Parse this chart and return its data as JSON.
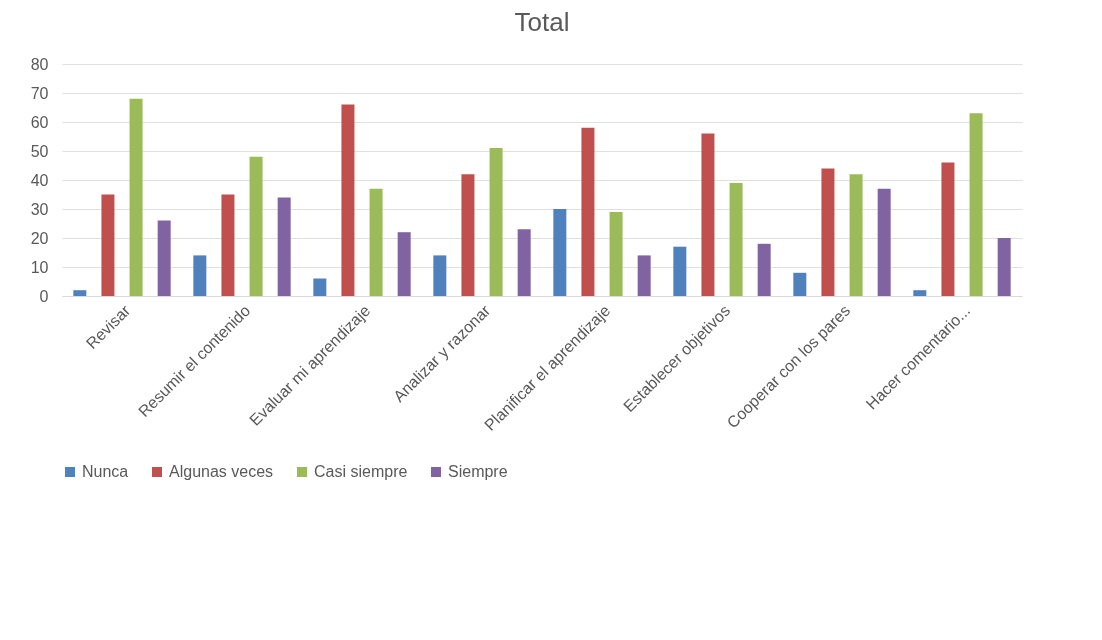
{
  "chart_data": {
    "type": "bar",
    "title": "Total",
    "categories": [
      "Revisar",
      "Resumir el contenido",
      "Evaluar mi aprendizaje",
      "Analizar y razonar",
      "Planificar el aprendizaje",
      "Establecer objetivos",
      "Cooperar con los pares",
      "Hacer comentario..."
    ],
    "series": [
      {
        "name": "Nunca",
        "color": "#4f81bd",
        "values": [
          2,
          14,
          6,
          14,
          30,
          17,
          8,
          2
        ]
      },
      {
        "name": "Algunas veces",
        "color": "#c0504d",
        "values": [
          35,
          35,
          66,
          42,
          58,
          56,
          44,
          46
        ]
      },
      {
        "name": "Casi siempre",
        "color": "#9bbb59",
        "values": [
          68,
          48,
          37,
          51,
          29,
          39,
          42,
          63
        ]
      },
      {
        "name": "Siempre",
        "color": "#8064a2",
        "values": [
          26,
          34,
          22,
          23,
          14,
          18,
          37,
          20
        ]
      }
    ],
    "ylim": [
      0,
      80
    ],
    "yticks": [
      0,
      10,
      20,
      30,
      40,
      50,
      60,
      70,
      80
    ],
    "grid": "y",
    "legend": "bottom"
  }
}
